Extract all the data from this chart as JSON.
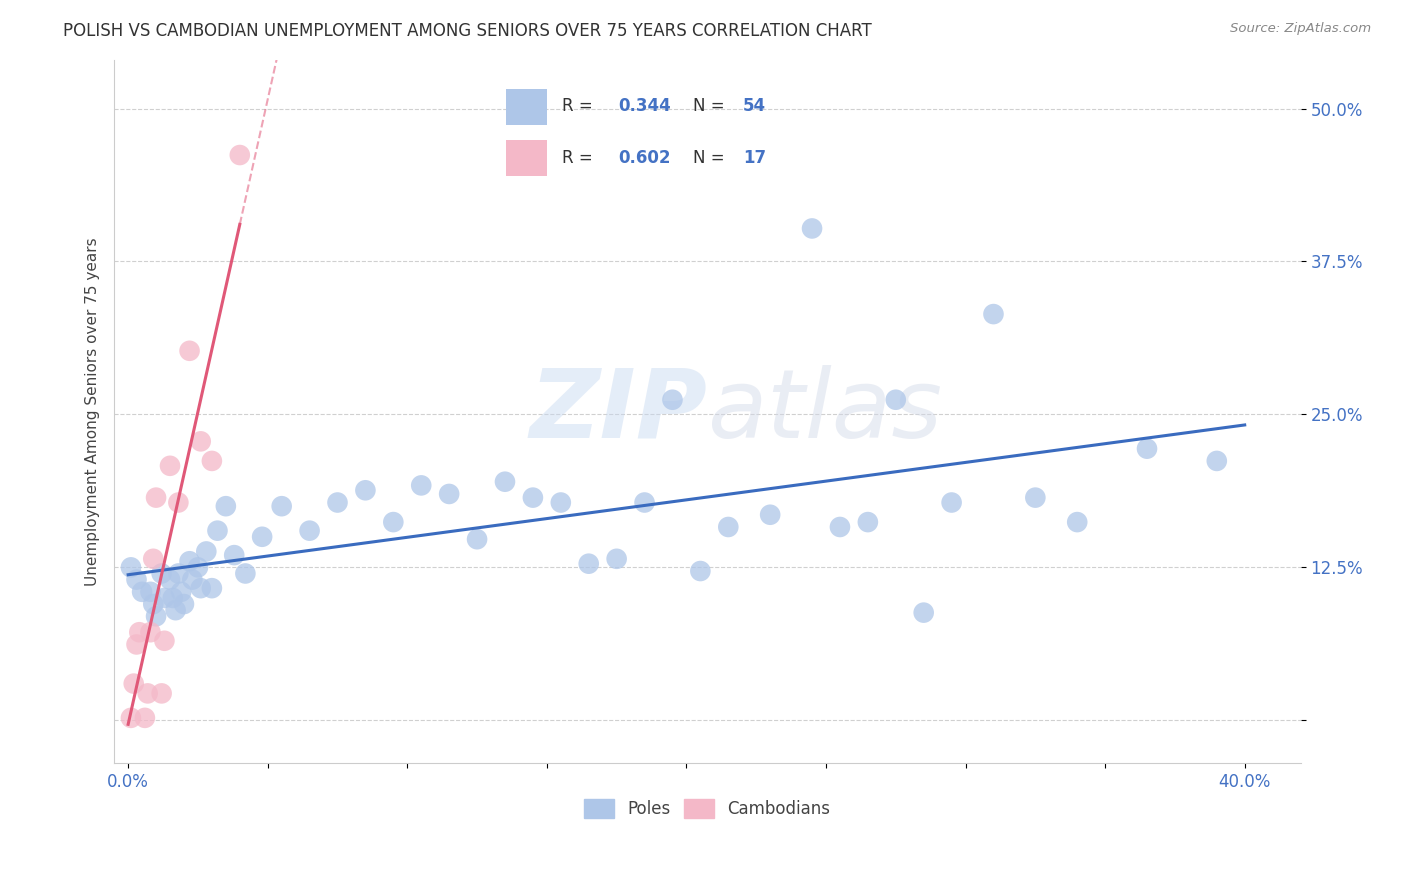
{
  "title": "POLISH VS CAMBODIAN UNEMPLOYMENT AMONG SENIORS OVER 75 YEARS CORRELATION CHART",
  "source": "Source: ZipAtlas.com",
  "ylabel": "Unemployment Among Seniors over 75 years",
  "xlim": [
    -0.005,
    0.42
  ],
  "ylim": [
    -0.035,
    0.54
  ],
  "xticks": [
    0.0,
    0.05,
    0.1,
    0.15,
    0.2,
    0.25,
    0.3,
    0.35,
    0.4
  ],
  "xticklabels_show": [
    "0.0%",
    "",
    "",
    "",
    "",
    "",
    "",
    "",
    "40.0%"
  ],
  "yticks": [
    0.0,
    0.125,
    0.25,
    0.375,
    0.5
  ],
  "yticklabels": [
    "",
    "12.5%",
    "25.0%",
    "37.5%",
    "50.0%"
  ],
  "poles_R": 0.344,
  "poles_N": 54,
  "cambodians_R": 0.602,
  "cambodians_N": 17,
  "poles_color": "#aec6e8",
  "cambodians_color": "#f4b8c8",
  "poles_line_color": "#3a6bbf",
  "cambodians_line_color": "#e05878",
  "poles_x": [
    0.001,
    0.003,
    0.005,
    0.008,
    0.009,
    0.01,
    0.012,
    0.013,
    0.015,
    0.016,
    0.017,
    0.018,
    0.019,
    0.02,
    0.022,
    0.023,
    0.025,
    0.026,
    0.028,
    0.03,
    0.032,
    0.035,
    0.038,
    0.042,
    0.048,
    0.055,
    0.065,
    0.075,
    0.085,
    0.095,
    0.105,
    0.115,
    0.125,
    0.135,
    0.145,
    0.155,
    0.165,
    0.175,
    0.185,
    0.195,
    0.205,
    0.215,
    0.23,
    0.245,
    0.255,
    0.265,
    0.275,
    0.285,
    0.295,
    0.31,
    0.325,
    0.34,
    0.365,
    0.39
  ],
  "poles_y": [
    0.125,
    0.115,
    0.105,
    0.105,
    0.095,
    0.085,
    0.12,
    0.1,
    0.115,
    0.1,
    0.09,
    0.12,
    0.105,
    0.095,
    0.13,
    0.115,
    0.125,
    0.108,
    0.138,
    0.108,
    0.155,
    0.175,
    0.135,
    0.12,
    0.15,
    0.175,
    0.155,
    0.178,
    0.188,
    0.162,
    0.192,
    0.185,
    0.148,
    0.195,
    0.182,
    0.178,
    0.128,
    0.132,
    0.178,
    0.262,
    0.122,
    0.158,
    0.168,
    0.402,
    0.158,
    0.162,
    0.262,
    0.088,
    0.178,
    0.332,
    0.182,
    0.162,
    0.222,
    0.212
  ],
  "cambodians_x": [
    0.001,
    0.002,
    0.003,
    0.004,
    0.006,
    0.007,
    0.008,
    0.009,
    0.01,
    0.012,
    0.013,
    0.015,
    0.018,
    0.022,
    0.026,
    0.03,
    0.04
  ],
  "cambodians_y": [
    0.002,
    0.03,
    0.062,
    0.072,
    0.002,
    0.022,
    0.072,
    0.132,
    0.182,
    0.022,
    0.065,
    0.208,
    0.178,
    0.302,
    0.228,
    0.212,
    0.462
  ],
  "watermark_zip": "ZIP",
  "watermark_atlas": "atlas",
  "background_color": "#ffffff",
  "grid_color": "#d0d0d0",
  "legend_R_blue": "#4472c4",
  "legend_text_color": "#333333",
  "tick_label_color": "#4472c4",
  "ylabel_color": "#444444"
}
